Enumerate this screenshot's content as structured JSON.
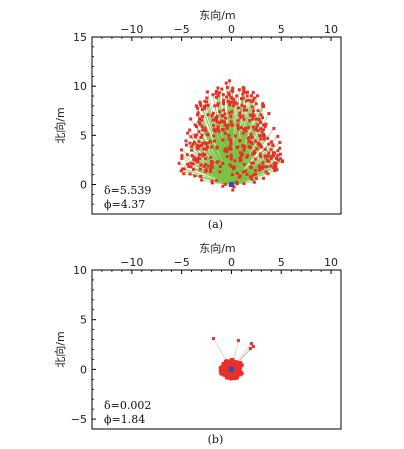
{
  "chart_data": [
    {
      "type": "scatter",
      "panel_label": "(a)",
      "xlabel": "东向/m",
      "ylabel": "北向/m",
      "xlim": [
        -14,
        11
      ],
      "ylim": [
        -3,
        15
      ],
      "xticks": [
        -10,
        -5,
        0,
        5,
        10
      ],
      "yticks": [
        0,
        5,
        10,
        15
      ],
      "xtick_labels": [
        "−10",
        "−5",
        "0",
        "5",
        "10"
      ],
      "ytick_labels": [
        "0",
        "5",
        "10",
        "15"
      ],
      "x_axis_position": "top",
      "annotations": [
        "δ=5.539",
        "ϕ=4.37"
      ],
      "series": [
        {
          "role": "points",
          "color": "#e8302a",
          "marker": "square"
        },
        {
          "role": "lines-to-true-position",
          "color": "#7cc243"
        },
        {
          "role": "true-position",
          "color": "#3a46c8",
          "x": 0,
          "y": 0
        }
      ],
      "point_cloud": {
        "center": [
          0,
          3.2
        ],
        "spread_x": 4.0,
        "spread_y": 4.4,
        "count": 430
      }
    },
    {
      "type": "scatter",
      "panel_label": "(b)",
      "xlabel": "东向/m",
      "ylabel": "北向/m",
      "xlim": [
        -14,
        11
      ],
      "ylim": [
        -6,
        10
      ],
      "xticks": [
        -10,
        -5,
        0,
        5,
        10
      ],
      "yticks": [
        -5,
        0,
        5,
        10
      ],
      "xtick_labels": [
        "−10",
        "−5",
        "0",
        "5",
        "10"
      ],
      "ytick_labels": [
        "−5",
        "0",
        "5",
        "10"
      ],
      "x_axis_position": "top",
      "annotations": [
        "δ=0.002",
        "ϕ=1.84"
      ],
      "series": [
        {
          "role": "points",
          "color": "#e8302a",
          "marker": "square"
        },
        {
          "role": "lines-to-true-position",
          "color": "#b9b9b9"
        },
        {
          "role": "true-position",
          "color": "#3a46c8",
          "x": 0,
          "y": 0
        }
      ],
      "point_cloud": {
        "center": [
          0,
          0
        ],
        "spread_x": 1.1,
        "spread_y": 1.0,
        "count": 260
      }
    }
  ]
}
